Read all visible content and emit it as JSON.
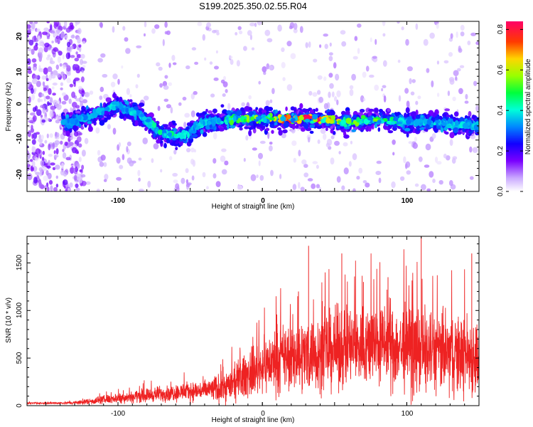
{
  "title": "S199.2025.350.02.55.R04",
  "chart_data": [
    {
      "type": "heatmap",
      "title": "S199.2025.350.02.55.R04",
      "xlabel": "Height of straight line (km)",
      "ylabel": "Frequency (Hz)",
      "xlim": [
        -163,
        150
      ],
      "ylim": [
        -24.5,
        23.5
      ],
      "xticks": [
        -100,
        0,
        100
      ],
      "xtick_labels": [
        "-100",
        "0",
        "100"
      ],
      "yticks": [
        -20,
        -10,
        0,
        10,
        20
      ],
      "ytick_labels": [
        "-20",
        "-10",
        "0",
        "10",
        "20"
      ],
      "colorbar": {
        "label": "Normalized spectral amplitude",
        "range": [
          0.0,
          0.84
        ],
        "ticks": [
          0.0,
          0.2,
          0.4,
          0.6,
          0.8
        ],
        "tick_labels": [
          "0.0",
          "0.2",
          "0.4",
          "0.6",
          "0.8"
        ],
        "colormap": "rainbow"
      },
      "ridge": {
        "x": [
          -130,
          -100,
          -85,
          -70,
          -55,
          -40,
          -20,
          0,
          20,
          40,
          60,
          80,
          100,
          120,
          150
        ],
        "freq": [
          -5,
          0,
          -3,
          -8,
          -9,
          -5,
          -4,
          -4,
          -4,
          -4,
          -5,
          -4,
          -5,
          -5,
          -6
        ],
        "peak_amplitude": [
          0.25,
          0.3,
          0.3,
          0.4,
          0.35,
          0.3,
          0.45,
          0.5,
          0.75,
          0.8,
          0.5,
          0.45,
          0.3,
          0.3,
          0.3
        ]
      }
    },
    {
      "type": "line",
      "xlabel": "Height of straight line (km)",
      "ylabel": "SNR (10 * v/v)",
      "xlim": [
        -163,
        150
      ],
      "ylim": [
        0,
        1780
      ],
      "xticks": [
        -100,
        0,
        100
      ],
      "xtick_labels": [
        "-100",
        "0",
        "100"
      ],
      "yticks": [
        0,
        500,
        1000,
        1500
      ],
      "ytick_labels": [
        "0",
        "500",
        "1000",
        "1500"
      ],
      "color": "#ee2222",
      "series": [
        {
          "name": "SNR",
          "envelope_x": [
            -163,
            -140,
            -130,
            -120,
            -100,
            -80,
            -60,
            -40,
            -30,
            -20,
            -10,
            0,
            10,
            20,
            40,
            60,
            80,
            100,
            120,
            140,
            150
          ],
          "envelope_mean": [
            25,
            28,
            30,
            45,
            80,
            110,
            140,
            160,
            180,
            230,
            330,
            420,
            480,
            520,
            560,
            620,
            650,
            600,
            560,
            540,
            520
          ],
          "envelope_spread": [
            15,
            18,
            30,
            55,
            90,
            120,
            150,
            180,
            250,
            300,
            400,
            450,
            550,
            600,
            650,
            700,
            700,
            750,
            700,
            700,
            700
          ],
          "spikes": [
            {
              "x": 32,
              "y": 1680
            },
            {
              "x": 55,
              "y": 1600
            },
            {
              "x": 110,
              "y": 1780
            },
            {
              "x": 145,
              "y": 1600
            },
            {
              "x": 25,
              "y": 1200
            },
            {
              "x": 87,
              "y": 1350
            },
            {
              "x": 70,
              "y": 1300
            }
          ]
        }
      ]
    }
  ]
}
